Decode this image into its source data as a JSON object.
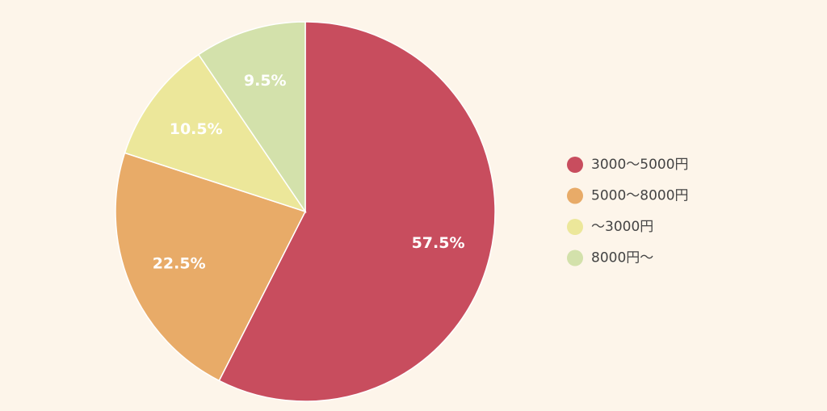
{
  "chart_data": {
    "type": "pie",
    "categories": [
      "3000〜5000円",
      "5000〜8000円",
      "〜3000円",
      "8000円〜"
    ],
    "values": [
      57.5,
      22.5,
      10.5,
      9.5
    ],
    "value_labels": [
      "57.5%",
      "22.5%",
      "10.5%",
      "9.5%"
    ],
    "colors": [
      "#c84d5e",
      "#e8ab68",
      "#ece79a",
      "#d3e1ab"
    ],
    "legend": "right"
  }
}
